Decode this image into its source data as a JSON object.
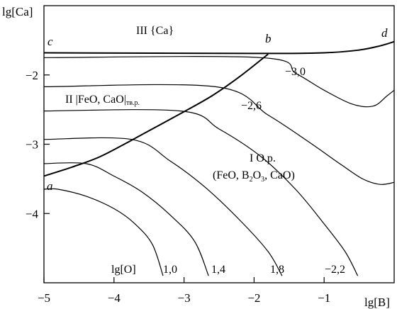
{
  "chart_data": {
    "type": "line",
    "xlabel": "lg[B]",
    "ylabel": "lg[Ca]",
    "xlim": [
      -5,
      0
    ],
    "ylim": [
      -5,
      -1
    ],
    "grid": false,
    "x_ticks": [
      {
        "value": -5,
        "label": "−5"
      },
      {
        "value": -4,
        "label": "−4"
      },
      {
        "value": -3,
        "label": "−3"
      },
      {
        "value": -2,
        "label": "−2"
      },
      {
        "value": -1,
        "label": "−1"
      }
    ],
    "y_ticks": [
      {
        "value": -2,
        "label": "−2"
      },
      {
        "value": -3,
        "label": "−3"
      },
      {
        "value": -4,
        "label": "−4"
      }
    ],
    "boundaries": [
      {
        "id": "a-b",
        "points": [
          [
            -5.0,
            -3.46
          ],
          [
            -4.6,
            -3.33
          ],
          [
            -4.2,
            -3.18
          ],
          [
            -3.8,
            -2.97
          ],
          [
            -3.4,
            -2.75
          ],
          [
            -3.0,
            -2.53
          ],
          [
            -2.6,
            -2.3
          ],
          [
            -2.2,
            -2.02
          ],
          [
            -1.8,
            -1.7
          ]
        ]
      },
      {
        "id": "c-d",
        "points": [
          [
            -5.0,
            -1.68
          ],
          [
            -2.0,
            -1.69
          ],
          [
            -1.0,
            -1.68
          ],
          [
            -0.5,
            -1.64
          ],
          [
            -0.2,
            -1.58
          ],
          [
            0.0,
            -1.52
          ]
        ]
      }
    ],
    "contours": [
      {
        "label": "1,0",
        "points": [
          [
            -5.0,
            -3.65
          ],
          [
            -4.8,
            -3.65
          ],
          [
            -4.4,
            -3.75
          ],
          [
            -4.0,
            -3.93
          ],
          [
            -3.7,
            -4.15
          ],
          [
            -3.45,
            -4.45
          ],
          [
            -3.3,
            -4.9
          ]
        ]
      },
      {
        "label": "1,4",
        "points": [
          [
            -5.0,
            -3.28
          ],
          [
            -4.4,
            -3.28
          ],
          [
            -4.0,
            -3.46
          ],
          [
            -3.6,
            -3.69
          ],
          [
            -3.2,
            -4.02
          ],
          [
            -2.85,
            -4.4
          ],
          [
            -2.65,
            -4.9
          ]
        ]
      },
      {
        "label": "1,8",
        "points": [
          [
            -5.0,
            -2.93
          ],
          [
            -3.75,
            -2.93
          ],
          [
            -3.2,
            -3.24
          ],
          [
            -2.7,
            -3.62
          ],
          [
            -2.2,
            -4.1
          ],
          [
            -1.8,
            -4.55
          ],
          [
            -1.6,
            -4.9
          ]
        ]
      },
      {
        "label": "−2,2",
        "points": [
          [
            -5.0,
            -2.52
          ],
          [
            -3.05,
            -2.52
          ],
          [
            -2.5,
            -2.78
          ],
          [
            -1.9,
            -3.18
          ],
          [
            -1.4,
            -3.66
          ],
          [
            -1.0,
            -4.15
          ],
          [
            -0.7,
            -4.55
          ],
          [
            -0.52,
            -4.9
          ]
        ]
      },
      {
        "label": "−2,6",
        "points": [
          [
            -5.0,
            -2.17
          ],
          [
            -2.55,
            -2.17
          ],
          [
            -1.8,
            -2.58
          ],
          [
            -1.2,
            -2.98
          ],
          [
            -0.75,
            -3.3
          ],
          [
            -0.45,
            -3.5
          ],
          [
            -0.2,
            -3.58
          ],
          [
            0.0,
            -3.55
          ]
        ]
      },
      {
        "label": "−3,0",
        "points": [
          [
            -5.0,
            -1.75
          ],
          [
            -1.9,
            -1.75
          ],
          [
            -1.4,
            -1.98
          ],
          [
            -1.0,
            -2.22
          ],
          [
            -0.6,
            -2.42
          ],
          [
            -0.3,
            -2.45
          ],
          [
            -0.1,
            -2.3
          ],
          [
            0.0,
            -2.22
          ]
        ]
      }
    ],
    "point_labels": [
      "a",
      "b",
      "c",
      "d"
    ],
    "regions": {
      "region_III": "III  {Ca}",
      "region_II": "II  |FeO, CaO|",
      "region_II_sub": "тв.р.",
      "region_I_line1": "I  О.р.",
      "region_I_line2_a": "(FeO, B",
      "region_I_line2_sub1": "2",
      "region_I_line2_b": "O",
      "region_I_line2_sub2": "3",
      "region_I_line2_c": ", CaO)"
    },
    "contour_param_label": "lg[O]"
  }
}
